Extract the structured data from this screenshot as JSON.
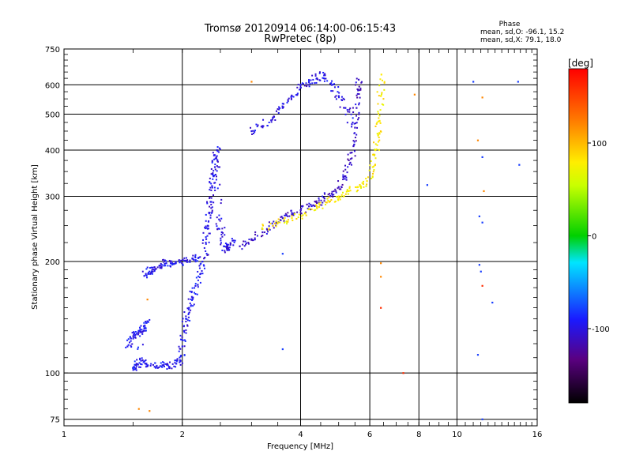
{
  "chart_data": {
    "type": "scatter",
    "title": "Tromsø 20120914 06:14:00-06:15:43",
    "subtitle": "RwPretec (8p)",
    "xlabel": "Frequency [MHz]",
    "ylabel": "Stationary phase Virtual Height [km]",
    "x_scale": "log2",
    "y_scale": "log",
    "xlim": [
      1,
      16
    ],
    "ylim": [
      72,
      750
    ],
    "x_ticks": [
      1,
      2,
      4,
      6,
      8,
      10,
      16
    ],
    "x_tick_labels": [
      "1",
      "2",
      "4",
      "6",
      "8",
      "10",
      "16"
    ],
    "y_ticks": [
      75,
      100,
      200,
      300,
      400,
      500,
      600,
      750
    ],
    "y_tick_labels": [
      "75",
      "100",
      "200",
      "300",
      "400",
      "500",
      "600",
      "750"
    ],
    "grid": true,
    "stats": {
      "heading": "Phase",
      "line1": "mean, sd,O:  -96.1, 15.2",
      "line2": "mean, sd,X:  79.1, 18.0"
    },
    "colorbar": {
      "label": "[deg]",
      "range": [
        -180,
        180
      ],
      "ticks": [
        100,
        0,
        -100
      ],
      "tick_labels": [
        "100",
        "0",
        "-100"
      ]
    },
    "series": [
      {
        "trace": "o-mode-E",
        "phase": -96,
        "points": [
          [
            1.45,
            118
          ],
          [
            1.48,
            124
          ],
          [
            1.52,
            127
          ],
          [
            1.56,
            130
          ],
          [
            1.6,
            132
          ],
          [
            1.63,
            138
          ],
          [
            1.52,
            105
          ],
          [
            1.5,
            102
          ],
          [
            1.57,
            108
          ],
          [
            1.62,
            106
          ],
          [
            1.7,
            104
          ],
          [
            1.78,
            105
          ],
          [
            1.85,
            104
          ],
          [
            1.93,
            106
          ],
          [
            1.98,
            108
          ],
          [
            2.0,
            118
          ],
          [
            2.02,
            130
          ],
          [
            2.05,
            140
          ],
          [
            2.08,
            150
          ],
          [
            2.12,
            160
          ],
          [
            2.16,
            172
          ],
          [
            2.22,
            185
          ],
          [
            2.25,
            200
          ]
        ]
      },
      {
        "trace": "o-mode-Es-low",
        "phase": -96,
        "points": [
          [
            1.6,
            183
          ],
          [
            1.65,
            188
          ],
          [
            1.7,
            190
          ],
          [
            1.75,
            195
          ],
          [
            1.82,
            198
          ],
          [
            1.9,
            197
          ],
          [
            1.97,
            199
          ],
          [
            2.05,
            201
          ],
          [
            2.12,
            204
          ],
          [
            2.2,
            205
          ]
        ]
      },
      {
        "trace": "o-mode-spread-vertical",
        "phase": -100,
        "points": [
          [
            2.28,
            205
          ],
          [
            2.3,
            230
          ],
          [
            2.32,
            250
          ],
          [
            2.34,
            270
          ],
          [
            2.36,
            290
          ],
          [
            2.38,
            320
          ],
          [
            2.4,
            340
          ],
          [
            2.42,
            360
          ],
          [
            2.44,
            380
          ],
          [
            2.45,
            400
          ],
          [
            2.48,
            260
          ],
          [
            2.52,
            240
          ],
          [
            2.55,
            220
          ],
          [
            2.6,
            215
          ],
          [
            2.65,
            222
          ],
          [
            2.7,
            228
          ]
        ]
      },
      {
        "trace": "o-mode-F",
        "phase": -110,
        "points": [
          [
            2.8,
            220
          ],
          [
            3.0,
            230
          ],
          [
            3.2,
            240
          ],
          [
            3.4,
            250
          ],
          [
            3.6,
            262
          ],
          [
            3.8,
            268
          ],
          [
            4.0,
            275
          ],
          [
            4.2,
            282
          ],
          [
            4.4,
            288
          ],
          [
            4.6,
            296
          ],
          [
            4.8,
            305
          ],
          [
            5.0,
            318
          ],
          [
            5.2,
            340
          ],
          [
            5.35,
            370
          ],
          [
            5.45,
            410
          ],
          [
            5.5,
            460
          ],
          [
            5.55,
            520
          ],
          [
            5.6,
            580
          ],
          [
            5.62,
            620
          ]
        ]
      },
      {
        "trace": "o-mode-upper-branch",
        "phase": -100,
        "points": [
          [
            3.0,
            450
          ],
          [
            3.2,
            465
          ],
          [
            3.4,
            490
          ],
          [
            3.6,
            520
          ],
          [
            3.8,
            560
          ],
          [
            4.0,
            590
          ],
          [
            4.2,
            610
          ],
          [
            4.4,
            625
          ],
          [
            4.6,
            640
          ],
          [
            4.8,
            600
          ],
          [
            5.0,
            560
          ],
          [
            5.2,
            520
          ],
          [
            5.4,
            470
          ]
        ]
      },
      {
        "trace": "x-mode-F",
        "phase": 80,
        "points": [
          [
            3.2,
            245
          ],
          [
            3.5,
            255
          ],
          [
            3.8,
            262
          ],
          [
            4.1,
            270
          ],
          [
            4.4,
            280
          ],
          [
            4.7,
            292
          ],
          [
            5.0,
            300
          ],
          [
            5.3,
            310
          ],
          [
            5.6,
            318
          ],
          [
            5.9,
            330
          ],
          [
            6.1,
            360
          ],
          [
            6.2,
            400
          ],
          [
            6.3,
            440
          ],
          [
            6.35,
            480
          ],
          [
            6.4,
            560
          ],
          [
            6.42,
            640
          ]
        ]
      },
      {
        "trace": "scattered",
        "phase": -80,
        "points": [
          [
            3.6,
            116
          ],
          [
            3.6,
            210
          ],
          [
            8.4,
            322
          ],
          [
            11.3,
            112
          ],
          [
            11.6,
            75
          ],
          [
            11.0,
            612
          ],
          [
            14.3,
            612
          ],
          [
            14.4,
            365
          ],
          [
            11.4,
            196
          ],
          [
            11.5,
            188
          ],
          [
            12.3,
            155
          ],
          [
            11.6,
            383
          ],
          [
            11.4,
            265
          ],
          [
            11.6,
            255
          ]
        ]
      },
      {
        "trace": "scattered-warm",
        "phase": 120,
        "points": [
          [
            1.55,
            80
          ],
          [
            1.65,
            79
          ],
          [
            3.0,
            612
          ],
          [
            7.8,
            565
          ],
          [
            11.3,
            425
          ],
          [
            11.6,
            555
          ],
          [
            11.7,
            310
          ],
          [
            1.63,
            158
          ],
          [
            6.4,
            182
          ],
          [
            6.4,
            198
          ]
        ]
      },
      {
        "trace": "scattered-red",
        "phase": 160,
        "points": [
          [
            7.3,
            100
          ],
          [
            6.4,
            150
          ],
          [
            11.6,
            172
          ]
        ]
      }
    ]
  }
}
